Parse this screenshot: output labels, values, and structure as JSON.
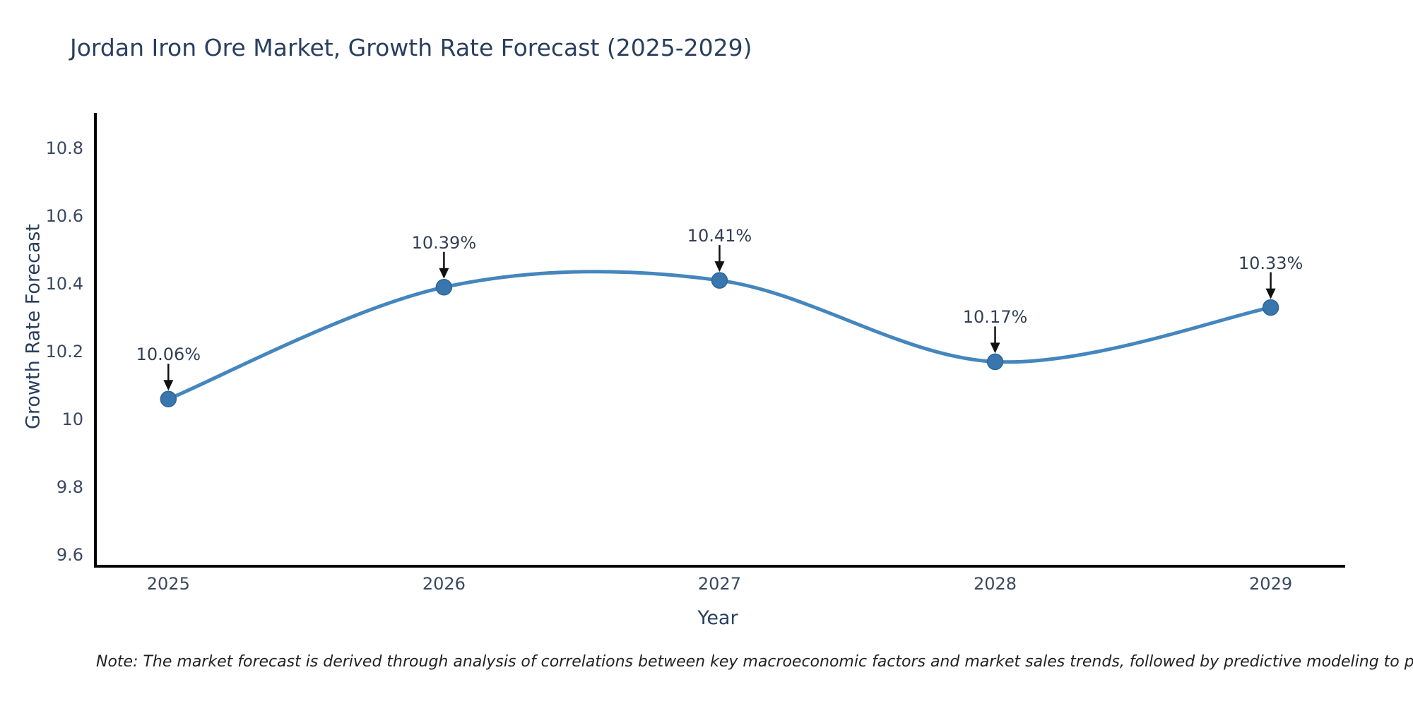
{
  "note": "Note: The market forecast is derived through analysis of correlations between key macroeconomic factors and market sales trends, followed by predictive modeling to project future sal",
  "chart_data": {
    "type": "line",
    "title": "Jordan Iron Ore Market, Growth Rate Forecast (2025-2029)",
    "xlabel": "Year",
    "ylabel": "Growth Rate Forecast",
    "x": [
      2025,
      2026,
      2027,
      2028,
      2029
    ],
    "values": [
      10.06,
      10.39,
      10.41,
      10.17,
      10.33
    ],
    "point_labels": [
      "10.06%",
      "10.39%",
      "10.41%",
      "10.17%",
      "10.33%"
    ],
    "x_tick_labels": [
      "2025",
      "2026",
      "2027",
      "2028",
      "2029"
    ],
    "yticks": [
      9.6,
      9.8,
      10,
      10.2,
      10.4,
      10.6,
      10.8
    ],
    "ytick_labels": [
      "9.6",
      "9.8",
      "10",
      "10.2",
      "10.4",
      "10.6",
      "10.8"
    ],
    "ylim": [
      9.571,
      10.904
    ],
    "xlim": [
      2024.73,
      2029.26
    ],
    "grid": false,
    "legend": false,
    "curve": "spline",
    "line_color": "#4486bd",
    "marker_color": "#3876ad",
    "marker_edge_color": "#2f6699",
    "arrow_color": "#111111",
    "axis_color": "#000000",
    "title_color": "#2a3f5f",
    "tick_color": "#3a4860",
    "annotation_color": "#333f54"
  }
}
